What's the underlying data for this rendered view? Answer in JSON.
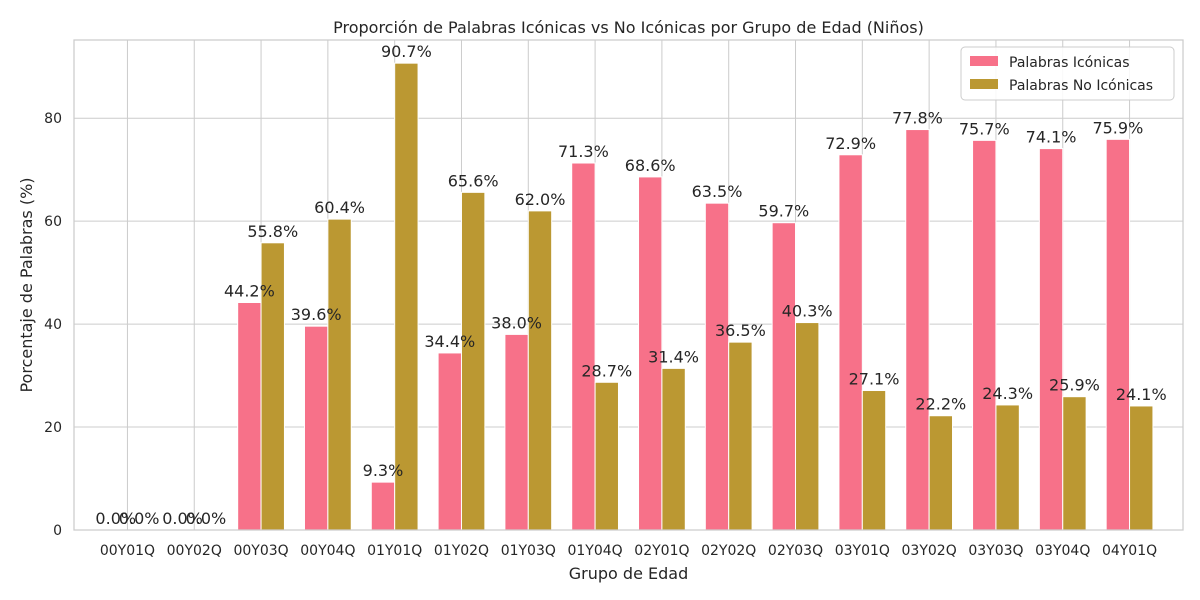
{
  "chart_data": {
    "type": "bar",
    "title": "Proporción de Palabras Icónicas vs No Icónicas por Grupo de Edad (Niños)",
    "xlabel": "Grupo de Edad",
    "ylabel": "Porcentaje de Palabras (%)",
    "ylim": [
      0,
      95.2
    ],
    "yticks": [
      0,
      20,
      40,
      60,
      80
    ],
    "grid": true,
    "legend_position": "top-right",
    "categories": [
      "00Y01Q",
      "00Y02Q",
      "00Y03Q",
      "00Y04Q",
      "01Y01Q",
      "01Y02Q",
      "01Y03Q",
      "01Y04Q",
      "02Y01Q",
      "02Y02Q",
      "02Y03Q",
      "03Y01Q",
      "03Y02Q",
      "03Y03Q",
      "03Y04Q",
      "04Y01Q"
    ],
    "series": [
      {
        "name": "Palabras Icónicas",
        "color": "#f77189",
        "values": [
          0.0,
          0.0,
          44.2,
          39.6,
          9.3,
          34.4,
          38.0,
          71.3,
          68.6,
          63.5,
          59.7,
          72.9,
          77.8,
          75.7,
          74.1,
          75.9
        ],
        "labels": [
          "0.0%",
          "0.0%",
          "44.2%",
          "39.6%",
          "9.3%",
          "34.4%",
          "38.0%",
          "71.3%",
          "68.6%",
          "63.5%",
          "59.7%",
          "72.9%",
          "77.8%",
          "75.7%",
          "74.1%",
          "75.9%"
        ]
      },
      {
        "name": "Palabras No Icónicas",
        "color": "#bb9832",
        "values": [
          0.0,
          0.0,
          55.8,
          60.4,
          90.7,
          65.6,
          62.0,
          28.7,
          31.4,
          36.5,
          40.3,
          27.1,
          22.2,
          24.3,
          25.9,
          24.1
        ],
        "labels": [
          "0.0%",
          "0.0%",
          "55.8%",
          "60.4%",
          "90.7%",
          "65.6%",
          "62.0%",
          "28.7%",
          "31.4%",
          "36.5%",
          "40.3%",
          "27.1%",
          "22.2%",
          "24.3%",
          "25.9%",
          "24.1%"
        ]
      }
    ]
  }
}
